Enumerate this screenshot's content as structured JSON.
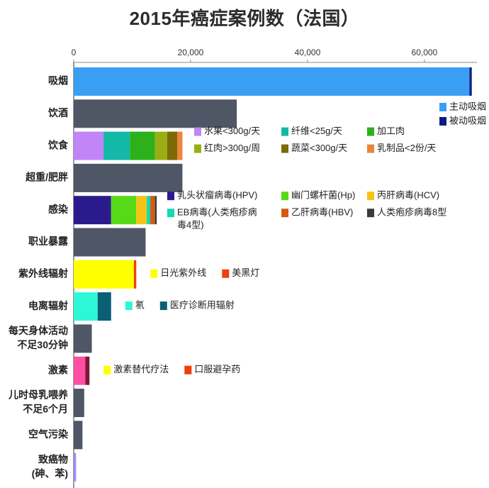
{
  "chart_data": {
    "type": "bar",
    "title": "2015年癌症案例数（法国）",
    "orientation": "horizontal",
    "stacked": true,
    "xlim": [
      0,
      68500
    ],
    "xticks": [
      0,
      20000,
      40000,
      60000
    ],
    "xtick_labels": [
      "0",
      "20,000",
      "40,000",
      "60,000"
    ],
    "axis_position": "top",
    "grid": false,
    "categories": [
      {
        "label": [
          "吸烟"
        ],
        "segments": [
          {
            "name": "主动吸烟",
            "value": 67700,
            "color": "#3a9ff2"
          },
          {
            "name": "被动吸烟",
            "value": 400,
            "color": "#0b1d80"
          }
        ]
      },
      {
        "label": [
          "饮酒"
        ],
        "segments": [
          {
            "value": 27900,
            "color": "#4f5766"
          }
        ]
      },
      {
        "label": [
          "饮食"
        ],
        "segments": [
          {
            "name": "水果<300g/天",
            "value": 5100,
            "color": "#c285f7"
          },
          {
            "name": "纤维<25g/天",
            "value": 4500,
            "color": "#14b8a6"
          },
          {
            "name": "加工肉",
            "value": 4300,
            "color": "#2cb11a"
          },
          {
            "name": "红肉>300g/周",
            "value": 2100,
            "color": "#9aae14"
          },
          {
            "name": "蔬菜<300g/天",
            "value": 1700,
            "color": "#7d6a07"
          },
          {
            "name": "乳制品<2份/天",
            "value": 900,
            "color": "#ec8441"
          }
        ]
      },
      {
        "label": [
          "超重/肥胖"
        ],
        "segments": [
          {
            "value": 18600,
            "color": "#4f5766"
          }
        ]
      },
      {
        "label": [
          "感染"
        ],
        "segments": [
          {
            "name": "乳头状瘤病毒(HPV)",
            "value": 6400,
            "color": "#2a1a8c"
          },
          {
            "name": "幽门螺杆菌(Hp)",
            "value": 4300,
            "color": "#56d916"
          },
          {
            "name": "丙肝病毒(HCV)",
            "value": 1800,
            "color": "#f3c316"
          },
          {
            "name": "EB病毒(人类疱疹病毒4型)",
            "value": 600,
            "color": "#12d9b5"
          },
          {
            "name": "乙肝病毒(HBV)",
            "value": 800,
            "color": "#d45a14"
          },
          {
            "name": "人类疱疹病毒8型",
            "value": 300,
            "color": "#3b3b3b"
          }
        ]
      },
      {
        "label": [
          "职业暴露"
        ],
        "segments": [
          {
            "value": 12300,
            "color": "#4f5766"
          }
        ]
      },
      {
        "label": [
          "紫外线辐射"
        ],
        "segments": [
          {
            "name": "日光紫外线",
            "value": 10300,
            "color": "#ffff00"
          },
          {
            "name": "美黑灯",
            "value": 400,
            "color": "#f23d0c"
          }
        ]
      },
      {
        "label": [
          "电离辐射"
        ],
        "segments": [
          {
            "name": "氡",
            "value": 4100,
            "color": "#2cf7d7"
          },
          {
            "name": "医疗诊断用辐射",
            "value": 2300,
            "color": "#0b5f73"
          }
        ]
      },
      {
        "label": [
          "每天身体活动",
          "不足30分钟"
        ],
        "segments": [
          {
            "value": 3100,
            "color": "#4f5766"
          }
        ]
      },
      {
        "label": [
          "激素"
        ],
        "segments": [
          {
            "name": "激素替代疗法",
            "value": 2000,
            "color": "#ff4fa3"
          },
          {
            "name": "口服避孕药",
            "value": 700,
            "color": "#7a1836"
          }
        ]
      },
      {
        "label": [
          "儿时母乳喂养",
          "不足6个月"
        ],
        "segments": [
          {
            "value": 1800,
            "color": "#4f5766"
          }
        ]
      },
      {
        "label": [
          "空气污染"
        ],
        "segments": [
          {
            "value": 1500,
            "color": "#4f5766"
          }
        ]
      },
      {
        "label": [
          "致癌物",
          "(砷、苯)"
        ],
        "segments": [
          {
            "value": 400,
            "color": "#9a8cf5"
          }
        ]
      }
    ],
    "legends": [
      {
        "row": 0,
        "placement": "right",
        "items": [
          {
            "label": "主动吸烟",
            "color": "#3a9ff2"
          },
          {
            "label": "被动吸烟",
            "color": "#0b1d80"
          }
        ]
      },
      {
        "row": 2,
        "placement": "beside-bar",
        "items": [
          {
            "label": "水果<300g/天",
            "color": "#c285f7"
          },
          {
            "label": "纤维<25g/天",
            "color": "#14b8a6"
          },
          {
            "label": "加工肉",
            "color": "#2cb11a"
          },
          {
            "label": "红肉>300g/周",
            "color": "#9aae14"
          },
          {
            "label": "蔬菜<300g/天",
            "color": "#7d6a07"
          },
          {
            "label": "乳制品<2份/天",
            "color": "#ec8441"
          }
        ]
      },
      {
        "row": 4,
        "placement": "beside-bar",
        "items": [
          {
            "label": "乳头状瘤病毒(HPV)",
            "color": "#2a1a8c"
          },
          {
            "label": "幽门螺杆菌(Hp)",
            "color": "#56d916"
          },
          {
            "label": "丙肝病毒(HCV)",
            "color": "#f3c316"
          },
          {
            "label": [
              "EB病毒(人类疱疹病",
              "毒4型)"
            ],
            "color": "#12d9b5"
          },
          {
            "label": "乙肝病毒(HBV)",
            "color": "#d45a14"
          },
          {
            "label": "人类疱疹病毒8型",
            "color": "#3b3b3b"
          }
        ]
      },
      {
        "row": 6,
        "placement": "beside-bar",
        "items": [
          {
            "label": "日光紫外线",
            "color": "#ffff00"
          },
          {
            "label": "美黑灯",
            "color": "#f23d0c"
          }
        ]
      },
      {
        "row": 7,
        "placement": "beside-bar",
        "items": [
          {
            "label": "氡",
            "color": "#2cf7d7"
          },
          {
            "label": "医疗诊断用辐射",
            "color": "#0b5f73"
          }
        ]
      },
      {
        "row": 9,
        "placement": "beside-bar",
        "items": [
          {
            "label": "激素替代疗法",
            "color": "#ffff00"
          },
          {
            "label": "口服避孕药",
            "color": "#f23d0c"
          }
        ]
      }
    ]
  }
}
